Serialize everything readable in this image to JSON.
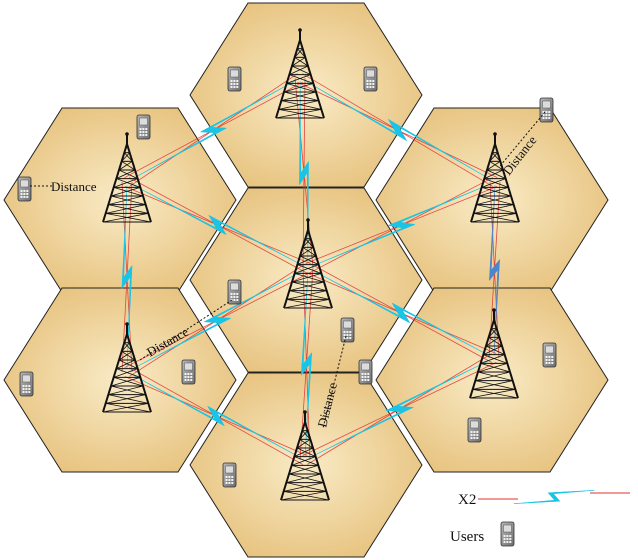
{
  "colors": {
    "cell_fill_center": "#f9ebc6",
    "cell_fill_edge": "#e6c07a",
    "cell_stroke": "#222222",
    "x2_link": "#19c4e6",
    "x2_link_highlight": "#4a86cc",
    "interference_line": "#e03030",
    "tower": "#111111",
    "user_device": "#8a8a8a"
  },
  "icons": {
    "base_station": "antenna-tower-icon",
    "user": "mobile-phone-icon",
    "x2": "lightning-link-icon"
  },
  "labels": {
    "distance_left": "Distance",
    "distance_center_left": "Distance",
    "distance_center_bottom": "Distance",
    "distance_top_right": "Distance"
  },
  "legend": {
    "x2_label": "X2",
    "users_label": "Users"
  }
}
